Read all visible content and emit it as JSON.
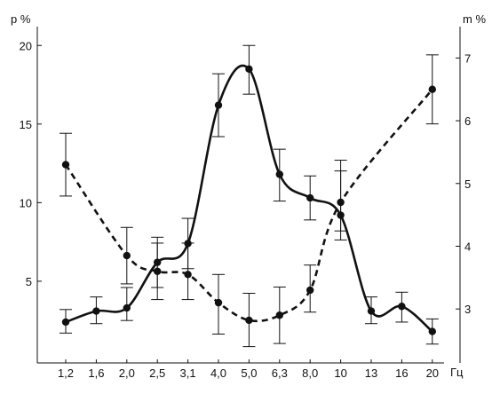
{
  "chart_data": {
    "type": "line",
    "title": "",
    "xlabel": "Гц",
    "ylabel_left": "p %",
    "ylabel_right": "m %",
    "grid": false,
    "categories": [
      "1,2",
      "1,6",
      "2,0",
      "2,5",
      "3,1",
      "4,0",
      "5,0",
      "6,3",
      "8,0",
      "10",
      "13",
      "16",
      "20"
    ],
    "y_left": {
      "ticks": [
        5,
        10,
        15,
        20
      ],
      "range": [
        -0.2,
        21.2
      ]
    },
    "y_right": {
      "ticks": [
        3,
        4,
        5,
        6,
        7
      ],
      "range": [
        2.14,
        7.5
      ]
    },
    "series": [
      {
        "axis": "left",
        "line_style": "solid",
        "values": [
          2.4,
          3.1,
          3.3,
          6.2,
          7.4,
          16.2,
          18.5,
          11.8,
          10.3,
          9.2,
          3.1,
          3.4,
          1.8
        ],
        "error_low": [
          1.7,
          2.3,
          2.5,
          4.6,
          5.8,
          14.2,
          16.9,
          10.1,
          8.9,
          8.2,
          2.3,
          2.4,
          1.0
        ],
        "error_high": [
          3.2,
          4.0,
          4.6,
          7.8,
          9.0,
          18.2,
          20.0,
          13.4,
          11.7,
          12.7,
          4.0,
          4.3,
          2.6
        ]
      },
      {
        "axis": "right",
        "line_style": "dashed",
        "values": [
          5.3,
          null,
          3.85,
          3.6,
          3.55,
          3.1,
          2.82,
          2.9,
          3.3,
          4.7,
          null,
          null,
          6.5
        ],
        "error_low": [
          4.8,
          null,
          3.4,
          3.15,
          3.15,
          2.6,
          2.4,
          2.45,
          2.95,
          4.1,
          null,
          null,
          5.95
        ],
        "error_high": [
          5.8,
          null,
          4.3,
          4.05,
          4.05,
          3.55,
          3.25,
          3.35,
          3.7,
          5.2,
          null,
          null,
          7.05
        ]
      }
    ]
  }
}
